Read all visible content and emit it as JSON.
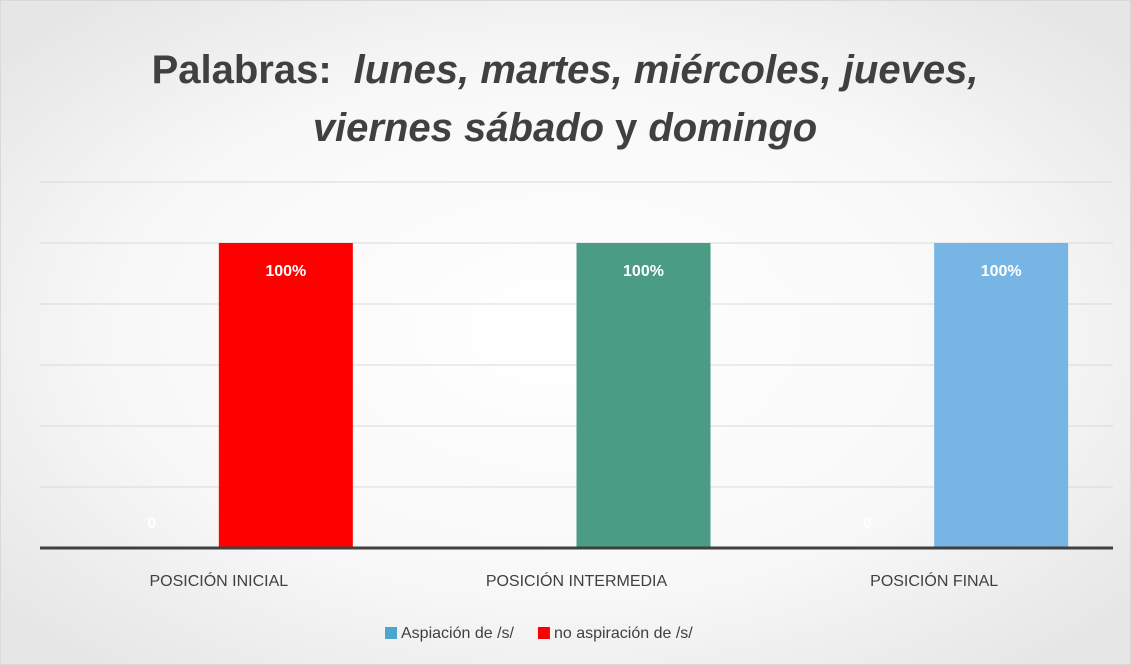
{
  "chart_data": {
    "type": "bar",
    "title": [
      [
        {
          "text": "Palabras:",
          "italic": false
        },
        {
          "text": "lunes, martes, miércoles, jueves,",
          "italic": true
        }
      ],
      [
        {
          "text": "viernes sábado",
          "italic": true
        },
        {
          "text": "y",
          "italic": false
        },
        {
          "text": "domingo",
          "italic": true
        }
      ]
    ],
    "categories": [
      "POSICIÓN INICIAL",
      "POSICIÓN INTERMEDIA",
      "POSICIÓN FINAL"
    ],
    "series": [
      {
        "name": "Aspiación de /s/",
        "color": "#4ba6cc",
        "values": [
          0,
          null,
          0
        ]
      },
      {
        "name": "no aspiración de /s/",
        "color": "#ff0000",
        "point_colors": [
          "#ff0000",
          "#4a9c84",
          "#76b5e4"
        ],
        "values": [
          100,
          100,
          100
        ],
        "value_labels": [
          "100%",
          "100%",
          "100%"
        ]
      }
    ],
    "ylim": [
      0,
      120
    ],
    "yticks": [
      0,
      20,
      40,
      60,
      80,
      100,
      120
    ],
    "grid": true,
    "legend": "bottom"
  }
}
